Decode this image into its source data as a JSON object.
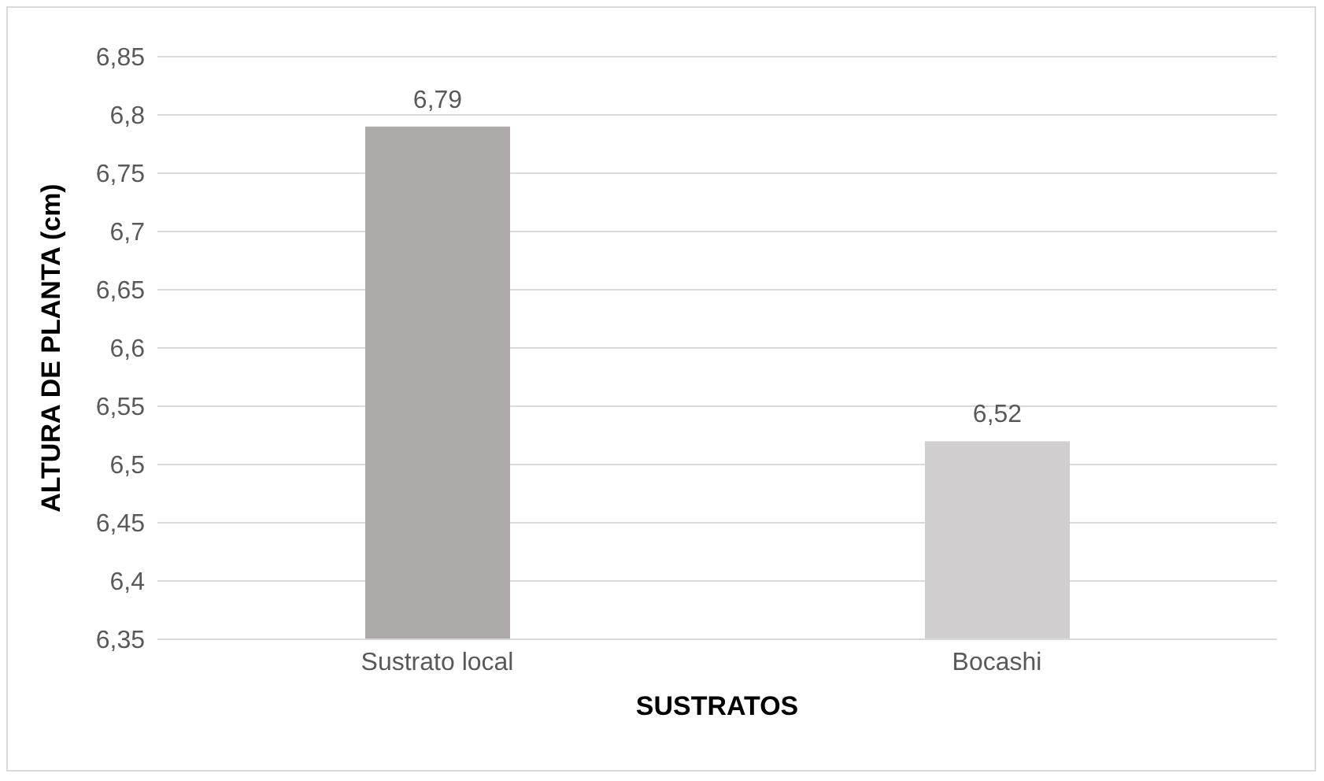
{
  "chart_data": {
    "type": "bar",
    "xlabel": "SUSTRATOS",
    "ylabel": "ALTURA DE PLANTA (cm)",
    "categories": [
      "Sustrato local",
      "Bocashi"
    ],
    "values": [
      6.79,
      6.52
    ],
    "colors": [
      "#aeaaaa",
      "#d0cece"
    ],
    "value_labels": [
      "6,79",
      "6,52"
    ],
    "ylim": [
      6.35,
      6.85
    ],
    "yticks": [
      {
        "value": 6.35,
        "label": "6,35"
      },
      {
        "value": 6.4,
        "label": "6,4"
      },
      {
        "value": 6.45,
        "label": "6,45"
      },
      {
        "value": 6.5,
        "label": "6,5"
      },
      {
        "value": 6.55,
        "label": "6,55"
      },
      {
        "value": 6.6,
        "label": "6,6"
      },
      {
        "value": 6.65,
        "label": "6,65"
      },
      {
        "value": 6.7,
        "label": "6,7"
      },
      {
        "value": 6.75,
        "label": "6,75"
      },
      {
        "value": 6.8,
        "label": "6,8"
      },
      {
        "value": 6.85,
        "label": "6,85"
      }
    ],
    "grid": "y",
    "legend": false
  }
}
